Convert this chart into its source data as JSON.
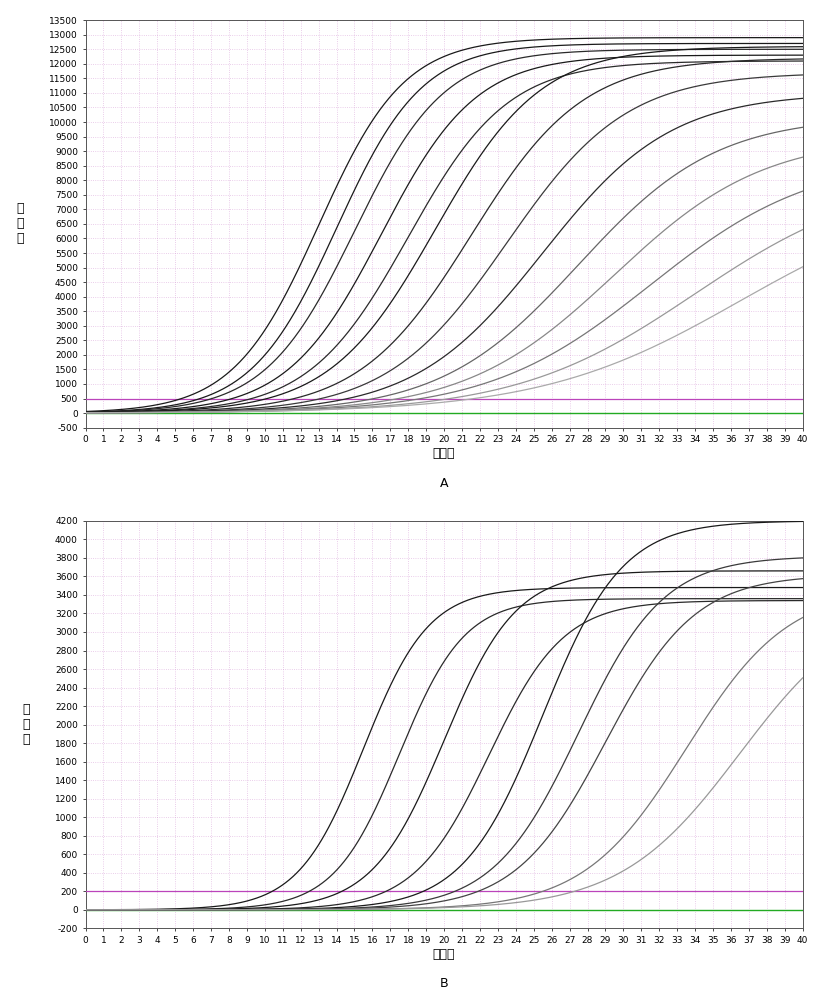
{
  "panel_A": {
    "ylabel": "荧\n光\n値",
    "xlabel": "循环数",
    "label_below": "A",
    "xlim": [
      0,
      40
    ],
    "ylim": [
      -500,
      13500
    ],
    "yticks": [
      -500,
      0,
      500,
      1000,
      1500,
      2000,
      2500,
      3000,
      3500,
      4000,
      4500,
      5000,
      5500,
      6000,
      6500,
      7000,
      7500,
      8000,
      8500,
      9000,
      9500,
      10000,
      10500,
      11000,
      11500,
      12000,
      12500,
      13000,
      13500
    ],
    "curves": [
      {
        "midpoint": 13.0,
        "L": 12900,
        "k": 0.42,
        "color": "#1a1a1a"
      },
      {
        "midpoint": 14.0,
        "L": 12700,
        "k": 0.42,
        "color": "#1a1a1a"
      },
      {
        "midpoint": 15.0,
        "L": 12500,
        "k": 0.4,
        "color": "#2a2a2a"
      },
      {
        "midpoint": 16.5,
        "L": 12300,
        "k": 0.38,
        "color": "#1a1a1a"
      },
      {
        "midpoint": 18.0,
        "L": 12100,
        "k": 0.36,
        "color": "#2a2a2a"
      },
      {
        "midpoint": 19.5,
        "L": 12600,
        "k": 0.34,
        "color": "#1a1a1a"
      },
      {
        "midpoint": 21.5,
        "L": 12200,
        "k": 0.32,
        "color": "#2a2a2a"
      },
      {
        "midpoint": 23.5,
        "L": 11700,
        "k": 0.3,
        "color": "#3a3a3a"
      },
      {
        "midpoint": 25.5,
        "L": 11000,
        "k": 0.28,
        "color": "#2a2a2a"
      },
      {
        "midpoint": 27.5,
        "L": 10200,
        "k": 0.26,
        "color": "#666666"
      },
      {
        "midpoint": 29.5,
        "L": 9500,
        "k": 0.24,
        "color": "#888888"
      },
      {
        "midpoint": 31.5,
        "L": 8800,
        "k": 0.22,
        "color": "#777777"
      },
      {
        "midpoint": 34.0,
        "L": 8200,
        "k": 0.2,
        "color": "#999999"
      },
      {
        "midpoint": 36.5,
        "L": 7700,
        "k": 0.18,
        "color": "#aaaaaa"
      }
    ],
    "threshold_y": 500,
    "threshold_color": "#bb44bb",
    "flat_line_color": "#22aa22",
    "baseline_noise_color": "#888888"
  },
  "panel_B": {
    "ylabel": "荧\n光\n値",
    "xlabel": "循环数",
    "label_below": "B",
    "xlim": [
      0,
      40
    ],
    "ylim": [
      -200,
      4200
    ],
    "yticks": [
      -200,
      0,
      200,
      400,
      600,
      800,
      1000,
      1200,
      1400,
      1600,
      1800,
      2000,
      2200,
      2400,
      2600,
      2800,
      3000,
      3200,
      3400,
      3600,
      3800,
      4000,
      4200
    ],
    "curves": [
      {
        "midpoint": 15.5,
        "L": 3480,
        "k": 0.55,
        "color": "#1a1a1a"
      },
      {
        "midpoint": 17.5,
        "L": 3360,
        "k": 0.55,
        "color": "#2a2a2a"
      },
      {
        "midpoint": 20.0,
        "L": 3660,
        "k": 0.5,
        "color": "#1a1a1a"
      },
      {
        "midpoint": 22.5,
        "L": 3340,
        "k": 0.48,
        "color": "#2a2a2a"
      },
      {
        "midpoint": 25.5,
        "L": 4200,
        "k": 0.45,
        "color": "#1a1a1a"
      },
      {
        "midpoint": 27.5,
        "L": 3820,
        "k": 0.42,
        "color": "#3a3a3a"
      },
      {
        "midpoint": 29.0,
        "L": 3620,
        "k": 0.4,
        "color": "#444444"
      },
      {
        "midpoint": 33.5,
        "L": 3480,
        "k": 0.35,
        "color": "#777777"
      },
      {
        "midpoint": 36.5,
        "L": 3380,
        "k": 0.3,
        "color": "#999999"
      }
    ],
    "threshold_y": 200,
    "threshold_color": "#bb44bb",
    "flat_line_color": "#22aa22",
    "baseline_noise_color": "#888888"
  },
  "background_color": "#ffffff",
  "grid_major_color": "#cc88cc",
  "grid_minor_color": "#cc88cc",
  "grid_alpha": 0.55,
  "font_size_tick": 6.5,
  "font_size_label": 9,
  "font_size_sublabel": 9
}
